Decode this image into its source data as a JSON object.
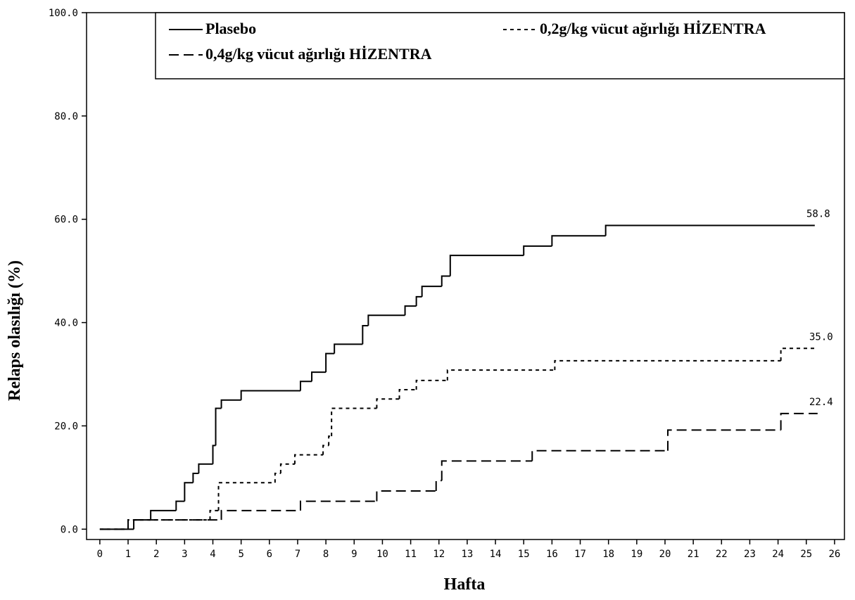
{
  "chart_data": {
    "type": "line",
    "step": "post",
    "x_label": "Hafta",
    "y_label": "Relaps olasılığı (%)",
    "xlim": [
      -0.47,
      26.35
    ],
    "ylim": [
      -2,
      100
    ],
    "xticks": [
      0,
      1,
      2,
      3,
      4,
      5,
      6,
      7,
      8,
      9,
      10,
      11,
      12,
      13,
      14,
      15,
      16,
      17,
      18,
      19,
      20,
      21,
      22,
      23,
      24,
      25,
      26
    ],
    "yticks": [
      {
        "value": 0,
        "label": "0.0"
      },
      {
        "value": 20,
        "label": "20.0"
      },
      {
        "value": 40,
        "label": "40.0"
      },
      {
        "value": 60,
        "label": "60.0"
      },
      {
        "value": 80,
        "label": "80.0"
      },
      {
        "value": 100,
        "label": "100.0"
      }
    ],
    "legend": "top-right",
    "series": [
      {
        "name": "Plasebo",
        "color": "#000000",
        "dash": "none",
        "x": [
          0,
          1.2,
          1.8,
          2.7,
          3.0,
          3.3,
          3.5,
          4.0,
          4.1,
          4.3,
          5.0,
          7.1,
          7.5,
          8.0,
          8.3,
          9.3,
          9.5,
          10.8,
          11.2,
          11.4,
          12.1,
          12.4,
          15.0,
          16.0,
          17.9,
          25.3
        ],
        "values": [
          0,
          1.8,
          3.6,
          5.4,
          9.0,
          10.8,
          12.6,
          16.2,
          23.4,
          25.0,
          26.8,
          28.6,
          30.4,
          34.0,
          35.8,
          39.4,
          41.4,
          43.2,
          45.0,
          47.0,
          49.0,
          53.0,
          54.8,
          56.8,
          58.8,
          58.8
        ],
        "value_labels": [
          null,
          null,
          null,
          null,
          null,
          null,
          null,
          null,
          null,
          null,
          null,
          null,
          null,
          null,
          null,
          null,
          null,
          null,
          null,
          null,
          null,
          null,
          null,
          null,
          null,
          "58.8"
        ]
      },
      {
        "name": "0,2g/kg vücut ağırlığı HİZENTRA",
        "color": "#000000",
        "dash": "5,5",
        "x": [
          0,
          1.0,
          3.9,
          4.2,
          6.2,
          6.4,
          6.9,
          7.9,
          8.1,
          8.2,
          9.8,
          10.6,
          11.2,
          12.3,
          16.1,
          24.1,
          25.4
        ],
        "values": [
          0,
          1.8,
          3.6,
          9.0,
          10.8,
          12.6,
          14.4,
          16.2,
          18.0,
          23.4,
          25.2,
          27.0,
          28.8,
          30.8,
          32.6,
          35.0,
          35.0
        ],
        "value_labels": [
          null,
          null,
          null,
          null,
          null,
          null,
          null,
          null,
          null,
          null,
          null,
          null,
          null,
          null,
          null,
          null,
          "35.0"
        ]
      },
      {
        "name": "0,4g/kg vücut ağırlığı HİZENTRA",
        "color": "#000000",
        "dash": "14,7",
        "x": [
          0,
          1.0,
          4.3,
          7.1,
          9.8,
          11.9,
          12.1,
          15.3,
          20.1,
          24.1,
          25.4
        ],
        "values": [
          0,
          1.8,
          3.6,
          5.4,
          7.4,
          9.4,
          13.2,
          15.2,
          19.2,
          22.4,
          22.4
        ],
        "value_labels": [
          null,
          null,
          null,
          null,
          null,
          null,
          null,
          null,
          null,
          null,
          "22.4"
        ]
      }
    ]
  }
}
